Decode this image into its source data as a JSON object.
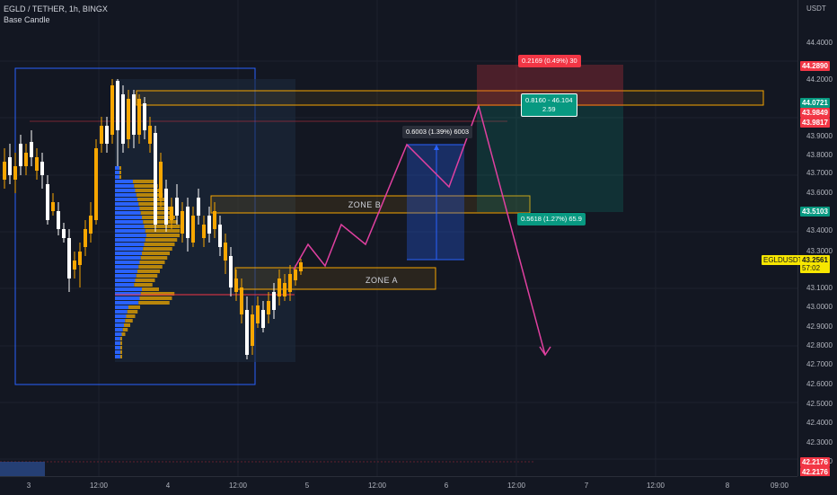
{
  "header": {
    "symbol_line": "EGLD / TETHER, 1h, BINGX",
    "style_line": "Base Candle"
  },
  "price_axis": {
    "currency": "USDT",
    "ticks": [
      "44.4000",
      "44.2000",
      "43.9000",
      "43.8000",
      "43.7000",
      "43.6000",
      "43.4000",
      "43.3000",
      "43.1000",
      "43.0000",
      "42.9000",
      "42.8000",
      "42.7000",
      "42.6000",
      "42.5000",
      "42.4000",
      "42.3000",
      "42.2000"
    ]
  },
  "price_labels": {
    "top_target": "44.2890",
    "upper": "44.0721",
    "stop1": "43.9849",
    "stop2": "43.9817",
    "mid": "43.5103",
    "symbol": "EGLDUSDT",
    "current": "43.2561",
    "countdown": "57:02",
    "low1": "42.2176",
    "low2": "42.2176"
  },
  "time_axis": {
    "ticks": [
      "3",
      "12:00",
      "4",
      "12:00",
      "5",
      "12:00",
      "6",
      "12:00",
      "7",
      "12:00",
      "8",
      "09:00"
    ]
  },
  "annotations": {
    "zone_a": "ZONE A",
    "zone_b": "ZONE B",
    "risk_label": "0.2169 (0.49%) 30",
    "rr_label_line1": "0.8160 - 46.104",
    "rr_label_line2": "2.59",
    "range_label": "0.6003 (1.39%) 6003",
    "target_label": "0.5618 (1.27%) 65.9"
  },
  "colors": {
    "background": "#131722",
    "bull": "#f7a600",
    "bear": "#ffffff",
    "profile_blue": "#2962ff",
    "zone_orange": "#f7a600",
    "path": "#e040a0",
    "red_label": "#f23645",
    "green_label": "#089981",
    "yellow_label": "#f7e600"
  }
}
